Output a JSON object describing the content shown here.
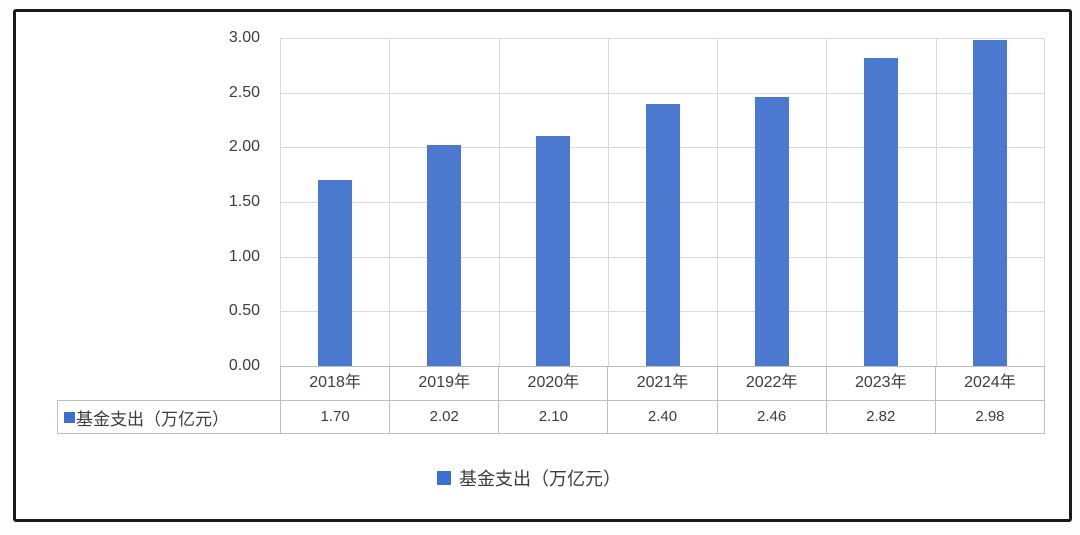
{
  "chart_data": {
    "type": "bar",
    "title": "",
    "categories": [
      "2018年",
      "2019年",
      "2020年",
      "2021年",
      "2022年",
      "2023年",
      "2024年"
    ],
    "series": [
      {
        "name": "基金支出（万亿元）",
        "values": [
          1.7,
          2.02,
          2.1,
          2.4,
          2.46,
          2.82,
          2.98
        ],
        "display_values": [
          "1.70",
          "2.02",
          "2.10",
          "2.40",
          "2.46",
          "2.82",
          "2.98"
        ]
      }
    ],
    "ylim": [
      0,
      3
    ],
    "yticks": [
      "3.00",
      "2.50",
      "2.00",
      "1.50",
      "1.00",
      "0.50",
      "0.00"
    ],
    "grid": true,
    "legend_position": "bottom",
    "legend_label": "基金支出（万亿元）",
    "data_table": {
      "row_label": "基金支出（万亿元）",
      "marker": "square"
    }
  },
  "legend": {
    "label": "基金支出（万亿元）"
  },
  "table": {
    "row_label": "基金支出（万亿元）"
  },
  "colors": {
    "bar": "#4A79CF",
    "marker": "#3C6FD2",
    "grid": "#D9D9D9",
    "table_border": "#BFBFBF",
    "text": "#3D3D3D",
    "frame_border": "#1A1A1A",
    "background": "#FFFFFF"
  }
}
